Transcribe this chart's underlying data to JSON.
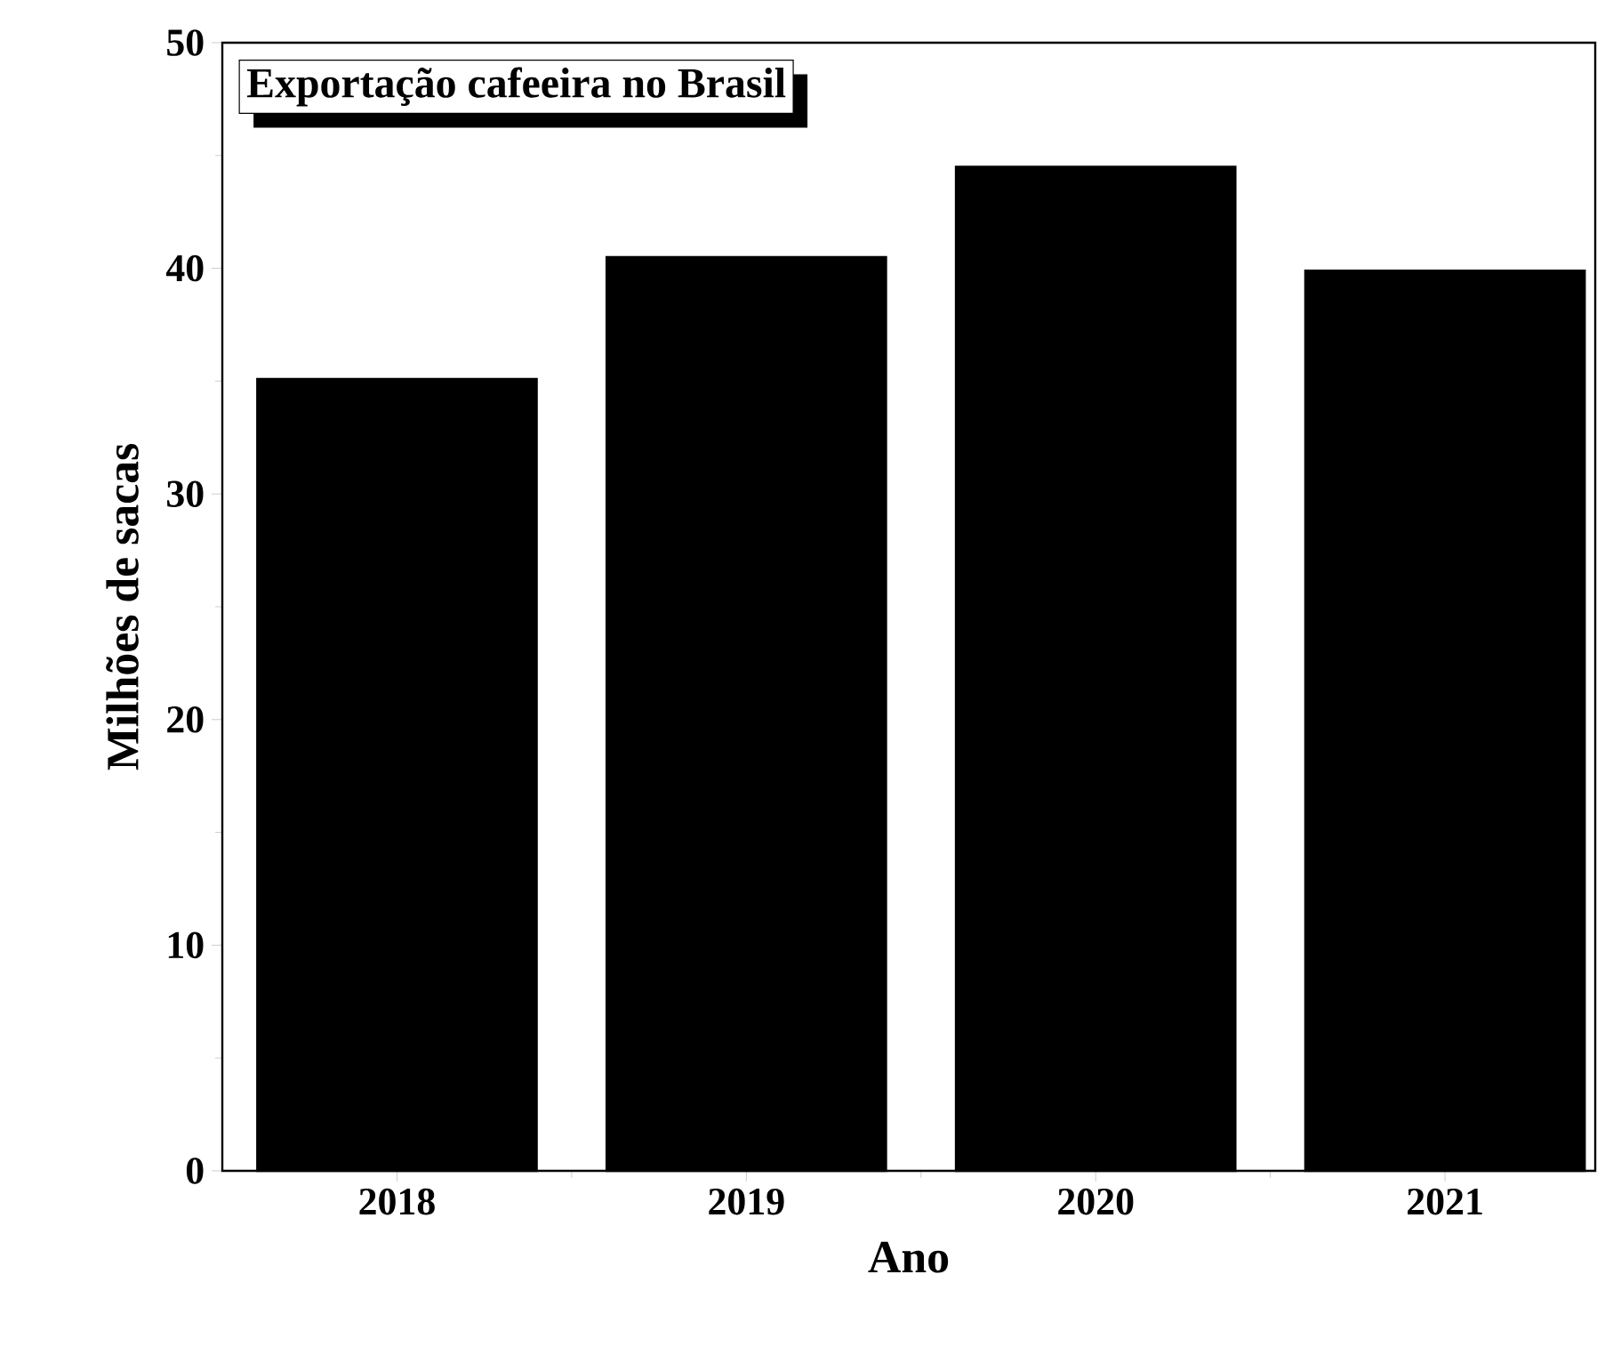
{
  "chart_data": {
    "type": "bar",
    "title": "Exportação cafeeira no Brasil",
    "xlabel": "Ano",
    "ylabel": "Milhões de sacas",
    "categories": [
      "2018",
      "2019",
      "2020",
      "2021"
    ],
    "values": [
      35.1,
      40.5,
      44.5,
      39.9
    ],
    "color": "#000000",
    "ylim": [
      0,
      50
    ],
    "yticks": [
      0,
      10,
      20,
      30,
      40,
      50
    ]
  }
}
